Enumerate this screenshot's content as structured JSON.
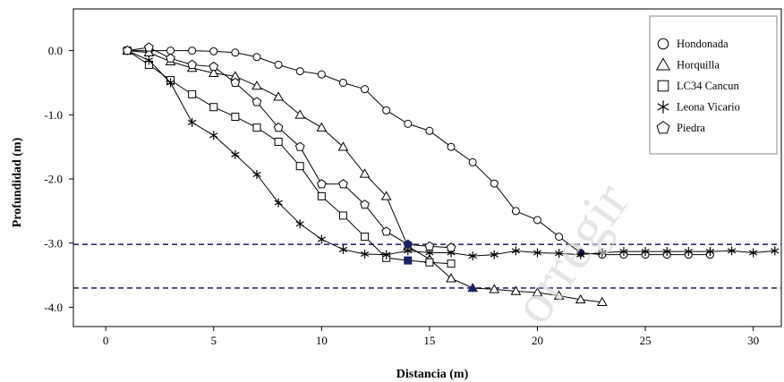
{
  "chart_data": {
    "type": "line",
    "xlabel": "Distancia (m)",
    "ylabel": "Profundidad (m)",
    "xlim": [
      -1.5,
      31.3
    ],
    "ylim": [
      -4.3,
      0.65
    ],
    "xticks": [
      0,
      5,
      10,
      15,
      20,
      25,
      30
    ],
    "yticks": [
      0.0,
      -1.0,
      -2.0,
      -3.0,
      -4.0
    ],
    "xtick_labels": [
      "0",
      "5",
      "10",
      "15",
      "20",
      "25",
      "30"
    ],
    "ytick_labels": [
      "0.0",
      "-1.0",
      "-2.0",
      "-3.0",
      "-4.0"
    ],
    "grid": false,
    "legend": "top-right",
    "reference_lines": [
      -3.02,
      -3.7
    ],
    "watermark": "orregir",
    "series": [
      {
        "name": "Hondonada",
        "marker": "circle",
        "x": [
          1,
          2,
          3,
          4,
          5,
          6,
          7,
          8,
          9,
          10,
          11,
          12,
          13,
          14,
          15,
          16,
          17,
          18,
          19,
          20,
          21,
          22,
          23,
          24,
          25,
          26,
          27,
          28
        ],
        "y": [
          0.0,
          0.0,
          0.0,
          0.0,
          -0.01,
          -0.03,
          -0.1,
          -0.22,
          -0.32,
          -0.37,
          -0.5,
          -0.6,
          -0.93,
          -1.14,
          -1.25,
          -1.5,
          -1.74,
          -2.07,
          -2.5,
          -2.64,
          -2.9,
          -3.15,
          -3.18,
          -3.18,
          -3.18,
          -3.18,
          -3.18,
          -3.18
        ],
        "filled_x": [
          22
        ]
      },
      {
        "name": "Horquilla",
        "marker": "triangle",
        "x": [
          1,
          2,
          3,
          4,
          5,
          6,
          7,
          8,
          9,
          10,
          11,
          12,
          13,
          14,
          15,
          16,
          17,
          18,
          19,
          20,
          21,
          22,
          23
        ],
        "y": [
          0.0,
          -0.03,
          -0.17,
          -0.27,
          -0.35,
          -0.4,
          -0.55,
          -0.72,
          -1.0,
          -1.2,
          -1.5,
          -1.92,
          -2.27,
          -3.05,
          -3.25,
          -3.55,
          -3.7,
          -3.72,
          -3.75,
          -3.77,
          -3.82,
          -3.88,
          -3.92
        ],
        "filled_x": [
          17
        ]
      },
      {
        "name": "LC34 Cancun",
        "marker": "square",
        "x": [
          1,
          2,
          3,
          4,
          5,
          6,
          7,
          8,
          9,
          10,
          11,
          12,
          13,
          14,
          15,
          16
        ],
        "y": [
          0.0,
          -0.22,
          -0.46,
          -0.68,
          -0.88,
          -1.03,
          -1.2,
          -1.42,
          -1.8,
          -2.27,
          -2.57,
          -2.9,
          -3.23,
          -3.27,
          -3.3,
          -3.32
        ],
        "filled_x": [
          14
        ]
      },
      {
        "name": "Leona Vicario",
        "marker": "star",
        "x": [
          1,
          2,
          3,
          4,
          5,
          6,
          7,
          8,
          9,
          10,
          11,
          12,
          13,
          14,
          15,
          16,
          17,
          18,
          19,
          20,
          21,
          22,
          23,
          24,
          25,
          26,
          27,
          28,
          29,
          30,
          31
        ],
        "y": [
          0.0,
          -0.15,
          -0.5,
          -1.12,
          -1.32,
          -1.62,
          -1.93,
          -2.37,
          -2.7,
          -2.94,
          -3.1,
          -3.17,
          -3.18,
          -3.12,
          -3.15,
          -3.15,
          -3.2,
          -3.18,
          -3.12,
          -3.15,
          -3.16,
          -3.18,
          -3.15,
          -3.13,
          -3.13,
          -3.13,
          -3.13,
          -3.13,
          -3.12,
          -3.15,
          -3.12
        ],
        "filled_x": []
      },
      {
        "name": "Piedra",
        "marker": "pentagon",
        "x": [
          1,
          2,
          3,
          4,
          5,
          6,
          7,
          8,
          9,
          10,
          11,
          12,
          13,
          14,
          15,
          16
        ],
        "y": [
          0.0,
          0.05,
          -0.12,
          -0.22,
          -0.25,
          -0.5,
          -0.8,
          -1.2,
          -1.5,
          -2.08,
          -2.08,
          -2.4,
          -2.82,
          -3.02,
          -3.05,
          -3.07
        ],
        "filled_x": [
          14
        ]
      }
    ]
  }
}
